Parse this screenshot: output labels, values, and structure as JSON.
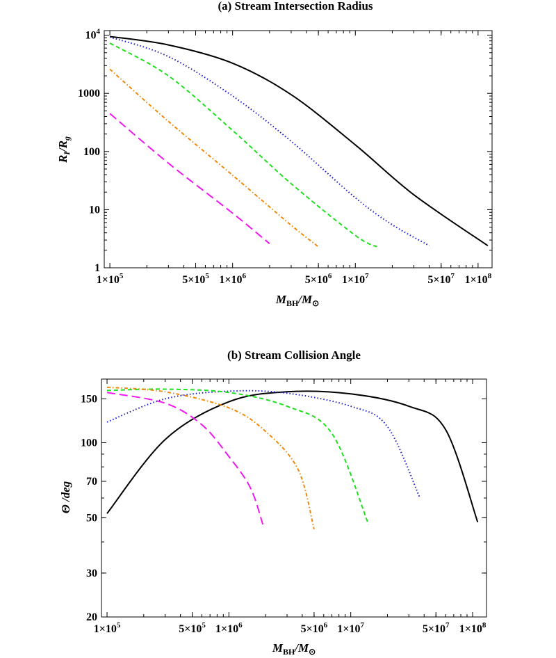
{
  "charts": [
    {
      "title": "(a)  Stream Intersection Radius",
      "xlabel": "M_BH/M_⊙",
      "ylabel": "R_I/R_g",
      "xticks": [
        {
          "v": 100000,
          "label": "1×10^5"
        },
        {
          "v": 500000,
          "label": "5×10^5"
        },
        {
          "v": 1000000,
          "label": "1×10^6"
        },
        {
          "v": 5000000,
          "label": "5×10^6"
        },
        {
          "v": 10000000,
          "label": "1×10^7"
        },
        {
          "v": 50000000,
          "label": "5×10^7"
        },
        {
          "v": 100000000,
          "label": "1×10^8"
        }
      ],
      "yticks": [
        {
          "v": 1,
          "label": "1"
        },
        {
          "v": 10,
          "label": "10"
        },
        {
          "v": 100,
          "label": "100"
        },
        {
          "v": 1000,
          "label": "1000"
        },
        {
          "v": 10000,
          "label": "10^4"
        }
      ]
    },
    {
      "title": "(b)  Stream Collision Angle",
      "xlabel": "M_BH/M_⊙",
      "ylabel": "Θ /deg",
      "xticks": [
        {
          "v": 100000,
          "label": "1×10^5"
        },
        {
          "v": 500000,
          "label": "5×10^5"
        },
        {
          "v": 1000000,
          "label": "1×10^6"
        },
        {
          "v": 5000000,
          "label": "5×10^6"
        },
        {
          "v": 10000000,
          "label": "1×10^7"
        },
        {
          "v": 50000000,
          "label": "5×10^7"
        },
        {
          "v": 100000000,
          "label": "1×10^8"
        }
      ],
      "yticks": [
        {
          "v": 20,
          "label": "20"
        },
        {
          "v": 30,
          "label": "30"
        },
        {
          "v": 50,
          "label": "50"
        },
        {
          "v": 70,
          "label": "70"
        },
        {
          "v": 100,
          "label": "100"
        },
        {
          "v": 150,
          "label": "150"
        }
      ]
    }
  ],
  "chart_data": [
    {
      "type": "line",
      "title": "(a)  Stream Intersection Radius",
      "xlabel": "M_BH/M_sun",
      "ylabel": "R_I/R_g",
      "xscale": "log",
      "yscale": "log",
      "xlim": [
        90000,
        130000000
      ],
      "ylim": [
        1,
        12000
      ],
      "series": [
        {
          "name": "black-solid",
          "color": "#000000",
          "dash": "solid",
          "x": [
            100000,
            300000,
            1000000,
            3000000,
            10000000,
            30000000,
            120000000
          ],
          "y": [
            9500,
            6800,
            3300,
            950,
            130,
            18,
            2.4
          ]
        },
        {
          "name": "blue-dotted",
          "color": "#1a1acc",
          "dash": "dotted",
          "x": [
            100000,
            300000,
            1000000,
            3000000,
            10000000,
            20000000,
            40000000
          ],
          "y": [
            9300,
            4300,
            900,
            150,
            16,
            5.5,
            2.4
          ]
        },
        {
          "name": "green-dashed",
          "color": "#1fe01f",
          "dash": "dashed",
          "x": [
            100000,
            300000,
            1000000,
            3000000,
            10000000,
            15000000
          ],
          "y": [
            7300,
            2000,
            230,
            28,
            3.6,
            2.3
          ]
        },
        {
          "name": "orange-dotdashed",
          "color": "#f0880a",
          "dash": "dotdash",
          "x": [
            100000,
            300000,
            1000000,
            3000000,
            5000000
          ],
          "y": [
            2600,
            330,
            39,
            5.4,
            2.3
          ]
        },
        {
          "name": "magenta-longdashed",
          "color": "#f018f0",
          "dash": "longdash",
          "x": [
            100000,
            300000,
            1000000,
            2000000
          ],
          "y": [
            450,
            63,
            8.7,
            2.6
          ]
        }
      ]
    },
    {
      "type": "line",
      "title": "(b)  Stream Collision Angle",
      "xlabel": "M_BH/M_sun",
      "ylabel": "Theta /deg",
      "xscale": "log",
      "yscale": "log",
      "xlim": [
        90000,
        130000000
      ],
      "ylim": [
        20,
        180
      ],
      "series": [
        {
          "name": "black-solid",
          "color": "#000000",
          "dash": "solid",
          "x": [
            100000,
            300000,
            1000000,
            3000000,
            10000000,
            30000000,
            60000000,
            110000000
          ],
          "y": [
            52,
            103,
            146,
            160,
            157,
            140,
            113,
            48
          ]
        },
        {
          "name": "blue-dotted",
          "color": "#1a1acc",
          "dash": "dotted",
          "x": [
            100000,
            300000,
            1000000,
            3000000,
            10000000,
            20000000,
            37000000
          ],
          "y": [
            121,
            150,
            161,
            158,
            140,
            116,
            60
          ]
        },
        {
          "name": "green-dashed",
          "color": "#1fe01f",
          "dash": "dashed",
          "x": [
            100000,
            300000,
            1000000,
            3000000,
            7000000,
            14000000
          ],
          "y": [
            162,
            164,
            159,
            140,
            109,
            47
          ]
        },
        {
          "name": "orange-dotdashed",
          "color": "#f0880a",
          "dash": "dotdash",
          "x": [
            100000,
            300000,
            1000000,
            2000000,
            3700000,
            5000000
          ],
          "y": [
            167,
            160,
            138,
            111,
            78,
            45
          ]
        },
        {
          "name": "magenta-longdashed",
          "color": "#f018f0",
          "dash": "longdash",
          "x": [
            100000,
            300000,
            600000,
            1000000,
            1500000,
            1900000
          ],
          "y": [
            159,
            144,
            118,
            88,
            66,
            47
          ]
        }
      ]
    }
  ]
}
